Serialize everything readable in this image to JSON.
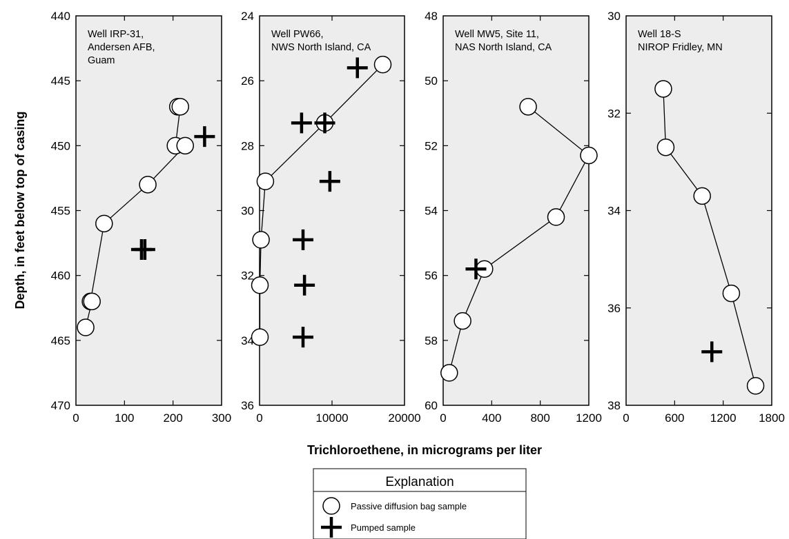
{
  "chart_data": [
    {
      "type": "scatter",
      "annotation": [
        "Well IRP-31,",
        "Andersen AFB,",
        "Guam"
      ],
      "xlim": [
        0,
        300
      ],
      "xticks": [
        "0",
        "100",
        "200",
        "300"
      ],
      "ylim": [
        440,
        470
      ],
      "yticks": [
        "440",
        "445",
        "450",
        "455",
        "460",
        "465",
        "470"
      ],
      "y_inverted": true,
      "series": [
        {
          "name": "Passive diffusion bag sample",
          "marker": "circle",
          "connected": true,
          "points": [
            [
              210,
              447
            ],
            [
              215,
              447
            ],
            [
              205,
              450
            ],
            [
              225,
              450
            ],
            [
              148,
              453
            ],
            [
              58,
              456
            ],
            [
              30,
              462
            ],
            [
              33,
              462
            ],
            [
              20,
              464
            ]
          ]
        },
        {
          "name": "Pumped sample",
          "marker": "plus",
          "connected": false,
          "points": [
            [
              265,
              449.3
            ],
            [
              135,
              458
            ],
            [
              142,
              458
            ]
          ]
        }
      ]
    },
    {
      "type": "scatter",
      "annotation": [
        "Well PW66,",
        "NWS North Island, CA"
      ],
      "xlim": [
        0,
        20000
      ],
      "xticks": [
        "0",
        "10000",
        "20000"
      ],
      "ylim": [
        24,
        36
      ],
      "yticks": [
        "24",
        "26",
        "28",
        "30",
        "32",
        "34",
        "36"
      ],
      "y_inverted": true,
      "series": [
        {
          "name": "Passive diffusion bag sample",
          "marker": "circle",
          "connected": true,
          "points": [
            [
              17000,
              25.5
            ],
            [
              9000,
              27.3
            ],
            [
              800,
              29.1
            ],
            [
              200,
              30.9
            ],
            [
              50,
              32.3
            ],
            [
              50,
              33.9
            ]
          ]
        },
        {
          "name": "Pumped sample",
          "marker": "plus",
          "connected": false,
          "points": [
            [
              13500,
              25.6
            ],
            [
              5800,
              27.3
            ],
            [
              9000,
              27.3
            ],
            [
              9700,
              29.1
            ],
            [
              6000,
              30.9
            ],
            [
              6200,
              32.3
            ],
            [
              6000,
              33.9
            ]
          ]
        }
      ]
    },
    {
      "type": "scatter",
      "annotation": [
        "Well MW5, Site 11,",
        "NAS North Island, CA"
      ],
      "xlim": [
        0,
        1200
      ],
      "xticks": [
        "0",
        "400",
        "800",
        "1200"
      ],
      "ylim": [
        48,
        60
      ],
      "yticks": [
        "48",
        "50",
        "52",
        "54",
        "56",
        "58",
        "60"
      ],
      "y_inverted": true,
      "series": [
        {
          "name": "Passive diffusion bag sample",
          "marker": "circle",
          "connected": true,
          "points": [
            [
              700,
              50.8
            ],
            [
              1200,
              52.3
            ],
            [
              930,
              54.2
            ],
            [
              340,
              55.8
            ],
            [
              160,
              57.4
            ],
            [
              50,
              59
            ]
          ]
        },
        {
          "name": "Pumped sample",
          "marker": "plus",
          "connected": false,
          "points": [
            [
              270,
              55.8
            ]
          ]
        }
      ]
    },
    {
      "type": "scatter",
      "annotation": [
        "Well 18-S",
        "NIROP Fridley, MN"
      ],
      "xlim": [
        0,
        1800
      ],
      "xticks": [
        "0",
        "600",
        "1200",
        "1800"
      ],
      "ylim": [
        30,
        38
      ],
      "yticks": [
        "30",
        "32",
        "34",
        "36",
        "38"
      ],
      "y_inverted": true,
      "series": [
        {
          "name": "Passive diffusion bag sample",
          "marker": "circle",
          "connected": true,
          "points": [
            [
              460,
              31.5
            ],
            [
              490,
              32.7
            ],
            [
              940,
              33.7
            ],
            [
              1300,
              35.7
            ],
            [
              1600,
              37.6
            ]
          ]
        },
        {
          "name": "Pumped sample",
          "marker": "plus",
          "connected": false,
          "points": [
            [
              1060,
              36.9
            ]
          ]
        }
      ]
    }
  ],
  "ylabel": "Depth, in feet below top of casing",
  "xlabel": "Trichloroethene, in micrograms per liter",
  "legend": {
    "title": "Explanation",
    "items": [
      {
        "marker": "circle",
        "label": "Passive diffusion bag sample"
      },
      {
        "marker": "plus",
        "label": "Pumped sample"
      }
    ]
  },
  "colors": {
    "plot_bg": "#ededed",
    "marker_fill": "#ffffff",
    "ink": "#000000"
  }
}
